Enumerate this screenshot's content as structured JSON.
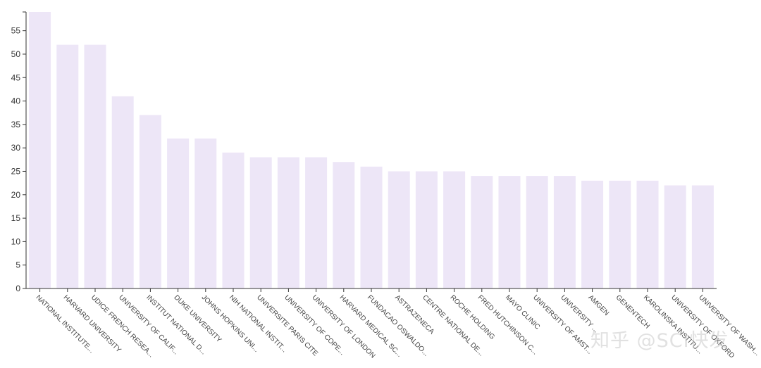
{
  "chart_data": {
    "type": "bar",
    "categories": [
      "NATIONAL INSTITUTE...",
      "HARVARD UNIVERSITY",
      "UDICE FRENCH RESEA...",
      "UNIVERSITY OF CALIF...",
      "INSTITUT NATIONAL D...",
      "DUKE UNIVERSITY",
      "JOHNS HOPKINS UNI...",
      "NIH NATIONAL INSTIT...",
      "UNIVERSITE PARIS CITE",
      "UNIVERSITY OF COPE...",
      "UNIVERSITY OF LONDON",
      "HARVARD MEDICAL SC...",
      "FUNDACAO OSWALDO...",
      "ASTRAZENECA",
      "CENTRE NATIONAL DE...",
      "ROCHE HOLDING",
      "FRED HUTCHINSON C...",
      "MAYO CLINIC",
      "UNIVERSITY OF AMST...",
      "UNIVERSITY ...",
      "AMGEN",
      "GENENTECH",
      "KAROLINSKA INSTITU...",
      "UNIVERSITY OF OXFORD",
      "UNIVERSITY OF WASH..."
    ],
    "values": [
      59,
      52,
      52,
      41,
      37,
      32,
      32,
      29,
      28,
      28,
      28,
      27,
      26,
      25,
      25,
      25,
      24,
      24,
      24,
      24,
      23,
      23,
      23,
      22,
      22
    ],
    "title": "",
    "xlabel": "",
    "ylabel": "",
    "ylim": [
      0,
      59
    ],
    "yticks": [
      0,
      5,
      10,
      15,
      20,
      25,
      30,
      35,
      40,
      45,
      50,
      55
    ],
    "grid": false,
    "legend": "none",
    "colors": {
      "bar": "#ede6f7",
      "axis": "#333333"
    }
  },
  "watermark": "知乎 @SCI快发"
}
